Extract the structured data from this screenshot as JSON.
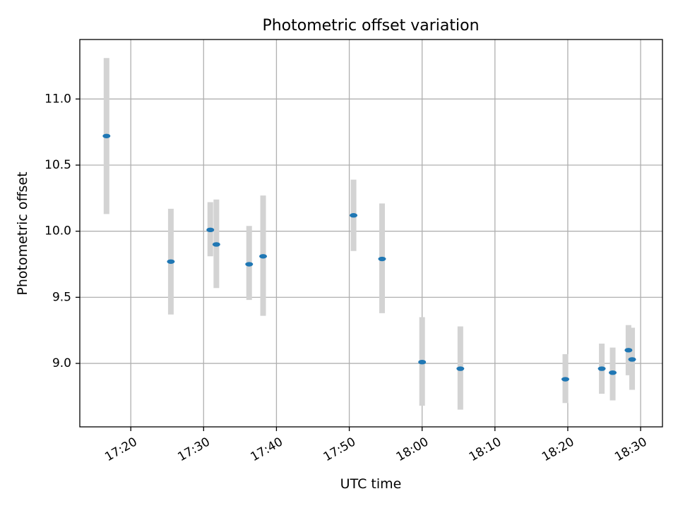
{
  "chart_data": {
    "type": "scatter",
    "title": "Photometric offset variation",
    "xlabel": "UTC time",
    "ylabel": "Photometric offset",
    "grid": true,
    "xlim": [
      "17:13",
      "18:33"
    ],
    "ylim": [
      8.52,
      11.45
    ],
    "x_ticks": [
      "17:20",
      "17:30",
      "17:40",
      "17:50",
      "18:00",
      "18:10",
      "18:20",
      "18:30"
    ],
    "y_ticks": [
      "9.0",
      "9.5",
      "10.0",
      "10.5",
      "11.0"
    ],
    "marker_color": "#1f77b4",
    "errorbar_color": "#d3d3d3",
    "series": [
      {
        "points": [
          {
            "x": "17:16:40",
            "y": 10.72,
            "ylow": 10.13,
            "yhigh": 11.31
          },
          {
            "x": "17:25:30",
            "y": 9.77,
            "ylow": 9.37,
            "yhigh": 10.17
          },
          {
            "x": "17:30:55",
            "y": 10.01,
            "ylow": 9.81,
            "yhigh": 10.22
          },
          {
            "x": "17:31:45",
            "y": 9.9,
            "ylow": 9.57,
            "yhigh": 10.24
          },
          {
            "x": "17:36:15",
            "y": 9.75,
            "ylow": 9.48,
            "yhigh": 10.04
          },
          {
            "x": "17:38:10",
            "y": 9.81,
            "ylow": 9.36,
            "yhigh": 10.27
          },
          {
            "x": "17:50:35",
            "y": 10.12,
            "ylow": 9.85,
            "yhigh": 10.39
          },
          {
            "x": "17:54:30",
            "y": 9.79,
            "ylow": 9.38,
            "yhigh": 10.21
          },
          {
            "x": "18:00:00",
            "y": 9.01,
            "ylow": 8.68,
            "yhigh": 9.35
          },
          {
            "x": "18:05:15",
            "y": 8.96,
            "ylow": 8.65,
            "yhigh": 9.28
          },
          {
            "x": "18:19:40",
            "y": 8.88,
            "ylow": 8.7,
            "yhigh": 9.07
          },
          {
            "x": "18:24:40",
            "y": 8.96,
            "ylow": 8.77,
            "yhigh": 9.15
          },
          {
            "x": "18:26:10",
            "y": 8.93,
            "ylow": 8.72,
            "yhigh": 9.12
          },
          {
            "x": "18:28:20",
            "y": 9.1,
            "ylow": 8.91,
            "yhigh": 9.29
          },
          {
            "x": "18:28:50",
            "y": 9.03,
            "ylow": 8.8,
            "yhigh": 9.27
          }
        ]
      }
    ]
  }
}
